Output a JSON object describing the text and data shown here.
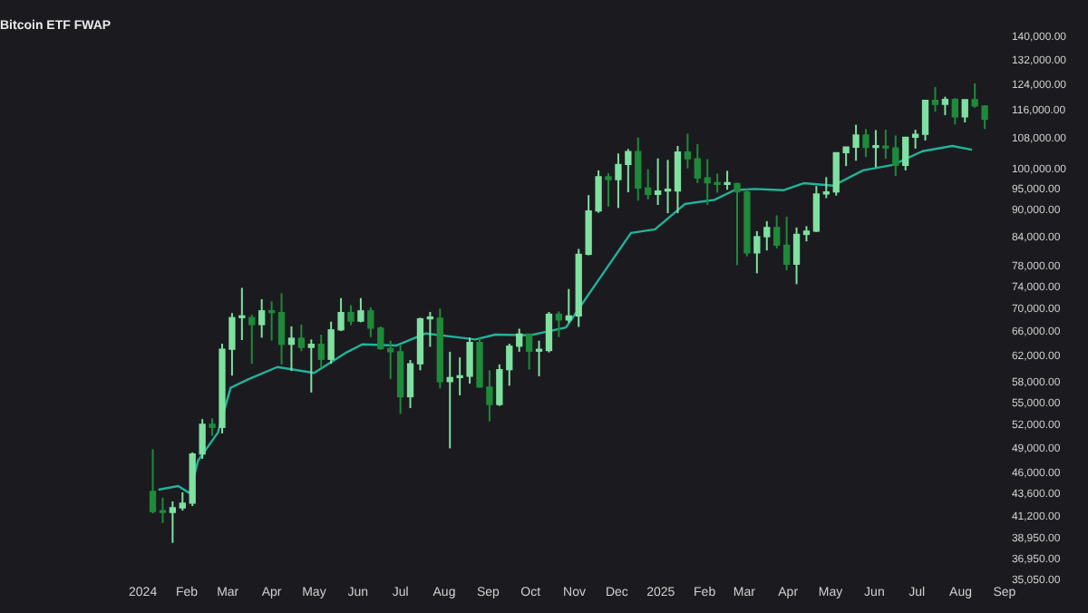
{
  "chart_data": {
    "type": "candlestick",
    "title": "Bitcoin ETF FWAP",
    "log": "y",
    "x": [
      "2024-01-08",
      "2024-01-15",
      "2024-01-22",
      "2024-01-29",
      "2024-02-05",
      "2024-02-12",
      "2024-02-19",
      "2024-02-26",
      "2024-03-04",
      "2024-03-11",
      "2024-03-18",
      "2024-03-25",
      "2024-04-01",
      "2024-04-08",
      "2024-04-15",
      "2024-04-22",
      "2024-04-29",
      "2024-05-06",
      "2024-05-13",
      "2024-05-20",
      "2024-05-27",
      "2024-06-03",
      "2024-06-10",
      "2024-06-17",
      "2024-06-24",
      "2024-07-01",
      "2024-07-08",
      "2024-07-15",
      "2024-07-22",
      "2024-07-29",
      "2024-08-05",
      "2024-08-12",
      "2024-08-19",
      "2024-08-26",
      "2024-09-02",
      "2024-09-09",
      "2024-09-16",
      "2024-09-23",
      "2024-09-30",
      "2024-10-07",
      "2024-10-14",
      "2024-10-21",
      "2024-10-28",
      "2024-11-04",
      "2024-11-11",
      "2024-11-18",
      "2024-11-25",
      "2024-12-02",
      "2024-12-09",
      "2024-12-16",
      "2024-12-23",
      "2024-12-30",
      "2025-01-06",
      "2025-01-13",
      "2025-01-20",
      "2025-01-27",
      "2025-02-03",
      "2025-02-10",
      "2025-02-17",
      "2025-02-24",
      "2025-03-03",
      "2025-03-10",
      "2025-03-17",
      "2025-03-24",
      "2025-03-31",
      "2025-04-07",
      "2025-04-14",
      "2025-04-21",
      "2025-04-28",
      "2025-05-05",
      "2025-05-12",
      "2025-05-19",
      "2025-05-26",
      "2025-06-02",
      "2025-06-09",
      "2025-06-16",
      "2025-06-23",
      "2025-06-30",
      "2025-07-07",
      "2025-07-14",
      "2025-07-21",
      "2025-07-28",
      "2025-08-04",
      "2025-08-11",
      "2025-08-18"
    ],
    "ohlc": [
      [
        43900,
        48900,
        41500,
        41700
      ],
      [
        41700,
        43200,
        40500,
        41600
      ],
      [
        41600,
        42800,
        38500,
        42100
      ],
      [
        42100,
        43800,
        41800,
        42600
      ],
      [
        42600,
        48500,
        42300,
        48300
      ],
      [
        48300,
        52800,
        47700,
        52100
      ],
      [
        52100,
        52900,
        50600,
        51700
      ],
      [
        51700,
        64000,
        50900,
        63100
      ],
      [
        63100,
        69200,
        59000,
        68400
      ],
      [
        68400,
        73800,
        64600,
        68400
      ],
      [
        68400,
        68900,
        60800,
        67200
      ],
      [
        67200,
        71700,
        65000,
        69600
      ],
      [
        69600,
        71300,
        64500,
        69300
      ],
      [
        69300,
        72800,
        60700,
        63900
      ],
      [
        63900,
        66900,
        59700,
        64900
      ],
      [
        64900,
        67200,
        62800,
        63400
      ],
      [
        63400,
        64700,
        56500,
        63900
      ],
      [
        63900,
        65500,
        60200,
        61500
      ],
      [
        61500,
        67700,
        60800,
        66300
      ],
      [
        66300,
        71900,
        66100,
        69300
      ],
      [
        69300,
        70600,
        67100,
        67800
      ],
      [
        67800,
        71900,
        67600,
        69600
      ],
      [
        69600,
        70200,
        65100,
        66600
      ],
      [
        66600,
        66900,
        63000,
        63200
      ],
      [
        63200,
        64500,
        58500,
        62700
      ],
      [
        62700,
        63800,
        53500,
        55900
      ],
      [
        55900,
        61400,
        54300,
        60800
      ],
      [
        60800,
        68400,
        59800,
        68200
      ],
      [
        68200,
        69400,
        63500,
        68300
      ],
      [
        68300,
        70000,
        57100,
        58100
      ],
      [
        58100,
        62700,
        49000,
        58700
      ],
      [
        58700,
        61800,
        56100,
        58900
      ],
      [
        58900,
        65000,
        57800,
        64200
      ],
      [
        64200,
        64900,
        57200,
        57300
      ],
      [
        57300,
        59800,
        52500,
        54800
      ],
      [
        54800,
        60700,
        54600,
        59900
      ],
      [
        59900,
        64000,
        57500,
        63600
      ],
      [
        63600,
        66500,
        62700,
        65600
      ],
      [
        65600,
        65600,
        59900,
        62800
      ],
      [
        62800,
        64500,
        58900,
        62900
      ],
      [
        62900,
        69400,
        62600,
        69000
      ],
      [
        69000,
        69500,
        65100,
        68000
      ],
      [
        68000,
        73600,
        67500,
        68700
      ],
      [
        68700,
        81500,
        66800,
        80400
      ],
      [
        80400,
        93500,
        80200,
        89800
      ],
      [
        89800,
        99600,
        89400,
        98000
      ],
      [
        98000,
        98900,
        90800,
        97300
      ],
      [
        97300,
        104000,
        90500,
        101100
      ],
      [
        101100,
        105200,
        94200,
        104500
      ],
      [
        104500,
        108300,
        92200,
        95200
      ],
      [
        95200,
        99900,
        92500,
        93700
      ],
      [
        93700,
        102700,
        91200,
        94500
      ],
      [
        94500,
        102300,
        89300,
        94500
      ],
      [
        94500,
        106000,
        89300,
        104400
      ],
      [
        104400,
        109400,
        100100,
        102600
      ],
      [
        102600,
        106500,
        96400,
        97700
      ],
      [
        97700,
        102500,
        91200,
        96500
      ],
      [
        96500,
        98800,
        94100,
        96100
      ],
      [
        96100,
        99500,
        94800,
        96300
      ],
      [
        96300,
        96500,
        78200,
        94300
      ],
      [
        94300,
        95000,
        80000,
        80700
      ],
      [
        80700,
        85300,
        76600,
        84100
      ],
      [
        84100,
        87500,
        81200,
        86100
      ],
      [
        86100,
        88800,
        81600,
        82300
      ],
      [
        82300,
        88500,
        77200,
        78400
      ],
      [
        78400,
        86100,
        74500,
        84600
      ],
      [
        84600,
        86400,
        83100,
        85300
      ],
      [
        85300,
        95700,
        85100,
        93800
      ],
      [
        93800,
        97900,
        92800,
        94300
      ],
      [
        94300,
        104300,
        93400,
        104200
      ],
      [
        104200,
        105800,
        100700,
        105700
      ],
      [
        105700,
        111900,
        102100,
        109000
      ],
      [
        109000,
        110700,
        103100,
        105600
      ],
      [
        105600,
        110400,
        100400,
        105700
      ],
      [
        105700,
        110500,
        102600,
        105500
      ],
      [
        105500,
        108900,
        98200,
        100900
      ],
      [
        100900,
        108500,
        99600,
        108400
      ],
      [
        108400,
        110500,
        105300,
        109200
      ],
      [
        109200,
        119200,
        107500,
        119100
      ],
      [
        119100,
        123200,
        115700,
        117900
      ],
      [
        117900,
        120200,
        114700,
        119400
      ],
      [
        119400,
        119800,
        112000,
        114200
      ],
      [
        114200,
        119300,
        112600,
        119300
      ],
      [
        119300,
        124400,
        116900,
        117400
      ],
      [
        117400,
        117600,
        110700,
        113500
      ]
    ],
    "colors": [
      "#1e8a3a",
      "#1e8a3a",
      "#7fe0a0",
      "#7fe0a0",
      "#7fe0a0",
      "#7fe0a0",
      "#1e8a3a",
      "#7fe0a0",
      "#7fe0a0",
      "#7fe0a0",
      "#1e8a3a",
      "#7fe0a0",
      "#1e8a3a",
      "#1e8a3a",
      "#7fe0a0",
      "#1e8a3a",
      "#7fe0a0",
      "#1e8a3a",
      "#7fe0a0",
      "#7fe0a0",
      "#1e8a3a",
      "#7fe0a0",
      "#1e8a3a",
      "#1e8a3a",
      "#1e8a3a",
      "#1e8a3a",
      "#7fe0a0",
      "#7fe0a0",
      "#7fe0a0",
      "#1e8a3a",
      "#7fe0a0",
      "#7fe0a0",
      "#7fe0a0",
      "#1e8a3a",
      "#1e8a3a",
      "#7fe0a0",
      "#7fe0a0",
      "#7fe0a0",
      "#1e8a3a",
      "#7fe0a0",
      "#7fe0a0",
      "#1e8a3a",
      "#7fe0a0",
      "#7fe0a0",
      "#7fe0a0",
      "#7fe0a0",
      "#1e8a3a",
      "#7fe0a0",
      "#7fe0a0",
      "#1e8a3a",
      "#1e8a3a",
      "#7fe0a0",
      "#7fe0a0",
      "#7fe0a0",
      "#1e8a3a",
      "#1e8a3a",
      "#1e8a3a",
      "#1e8a3a",
      "#7fe0a0",
      "#1e8a3a",
      "#1e8a3a",
      "#7fe0a0",
      "#7fe0a0",
      "#1e8a3a",
      "#1e8a3a",
      "#7fe0a0",
      "#7fe0a0",
      "#7fe0a0",
      "#7fe0a0",
      "#7fe0a0",
      "#7fe0a0",
      "#7fe0a0",
      "#1e8a3a",
      "#7fe0a0",
      "#1e8a3a",
      "#1e8a3a",
      "#7fe0a0",
      "#7fe0a0",
      "#7fe0a0",
      "#1e8a3a",
      "#7fe0a0",
      "#1e8a3a",
      "#7fe0a0",
      "#1e8a3a",
      "#1e8a3a"
    ],
    "series": [
      {
        "type": "line",
        "color": "#22b39a",
        "x": [
          "2024-01-12",
          "2024-01-26",
          "2024-02-03",
          "2024-02-09",
          "2024-02-23",
          "2024-03-03",
          "2024-03-15",
          "2024-04-05",
          "2024-05-01",
          "2024-05-24",
          "2024-06-04",
          "2024-06-28",
          "2024-07-19",
          "2024-08-23",
          "2024-09-06",
          "2024-10-01",
          "2024-10-26",
          "2024-11-16",
          "2024-12-11",
          "2024-12-28",
          "2025-01-18",
          "2025-02-08",
          "2025-02-22",
          "2025-03-08",
          "2025-03-29",
          "2025-04-12",
          "2025-05-03",
          "2025-05-24",
          "2025-06-14",
          "2025-07-05",
          "2025-07-26",
          "2025-08-09"
        ],
        "values": [
          44100,
          44500,
          43700,
          47500,
          51000,
          57200,
          58400,
          60300,
          59400,
          62600,
          63900,
          63700,
          65700,
          64700,
          65500,
          65400,
          66700,
          74500,
          84900,
          85700,
          91400,
          92400,
          94700,
          95000,
          94700,
          96400,
          95800,
          99600,
          101000,
          104600,
          106000,
          105000
        ]
      }
    ],
    "xlim": [
      "2023-09-22",
      "2025-09-01"
    ],
    "xticks": [
      {
        "value": "2024-01-01",
        "label": "2024"
      },
      {
        "value": "2024-02-01",
        "label": "Feb"
      },
      {
        "value": "2024-03-01",
        "label": "Mar"
      },
      {
        "value": "2024-04-01",
        "label": "Apr"
      },
      {
        "value": "2024-05-01",
        "label": "May"
      },
      {
        "value": "2024-06-01",
        "label": "Jun"
      },
      {
        "value": "2024-07-01",
        "label": "Jul"
      },
      {
        "value": "2024-08-01",
        "label": "Aug"
      },
      {
        "value": "2024-09-01",
        "label": "Sep"
      },
      {
        "value": "2024-10-01",
        "label": "Oct"
      },
      {
        "value": "2024-11-01",
        "label": "Nov"
      },
      {
        "value": "2024-12-01",
        "label": "Dec"
      },
      {
        "value": "2025-01-01",
        "label": "2025"
      },
      {
        "value": "2025-02-01",
        "label": "Feb"
      },
      {
        "value": "2025-03-01",
        "label": "Mar"
      },
      {
        "value": "2025-04-01",
        "label": "Apr"
      },
      {
        "value": "2025-05-01",
        "label": "May"
      },
      {
        "value": "2025-06-01",
        "label": "Jun"
      },
      {
        "value": "2025-07-01",
        "label": "Jul"
      },
      {
        "value": "2025-08-01",
        "label": "Aug"
      },
      {
        "value": "2025-09-01",
        "label": "Sep"
      }
    ],
    "ylim": [
      35050,
      140000
    ],
    "yticks": [
      {
        "value": 35050,
        "label": "35,050.00"
      },
      {
        "value": 36950,
        "label": "36,950.00"
      },
      {
        "value": 38950,
        "label": "38,950.00"
      },
      {
        "value": 41200,
        "label": "41,200.00"
      },
      {
        "value": 43600,
        "label": "43,600.00"
      },
      {
        "value": 46000,
        "label": "46,000.00"
      },
      {
        "value": 49000,
        "label": "49,000.00"
      },
      {
        "value": 52000,
        "label": "52,000.00"
      },
      {
        "value": 55000,
        "label": "55,000.00"
      },
      {
        "value": 58000,
        "label": "58,000.00"
      },
      {
        "value": 62000,
        "label": "62,000.00"
      },
      {
        "value": 66000,
        "label": "66,000.00"
      },
      {
        "value": 70000,
        "label": "70,000.00"
      },
      {
        "value": 74000,
        "label": "74,000.00"
      },
      {
        "value": 78000,
        "label": "78,000.00"
      },
      {
        "value": 84000,
        "label": "84,000.00"
      },
      {
        "value": 90000,
        "label": "90,000.00"
      },
      {
        "value": 95000,
        "label": "95,000.00"
      },
      {
        "value": 100000,
        "label": "100,000.00"
      },
      {
        "value": 108000,
        "label": "108,000.00"
      },
      {
        "value": 116000,
        "label": "116,000.00"
      },
      {
        "value": 124000,
        "label": "124,000.00"
      },
      {
        "value": 132000,
        "label": "132,000.00"
      },
      {
        "value": 140000,
        "label": "140,000.00"
      }
    ]
  }
}
